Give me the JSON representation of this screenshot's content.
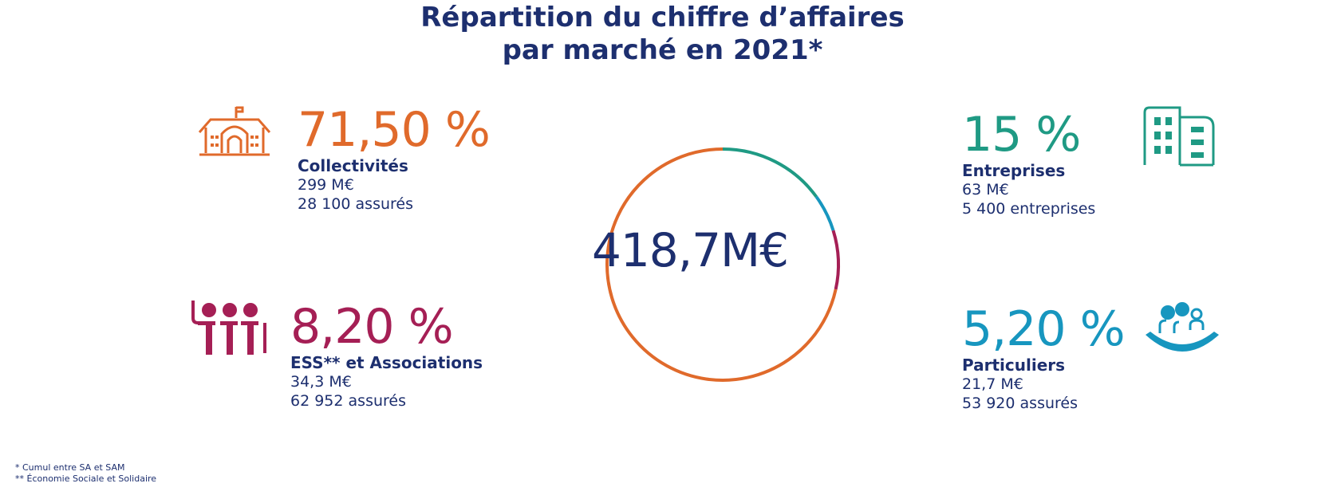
{
  "title": {
    "line1": "Répartition du chiffre d’affaires",
    "line2": "par marché en 2021*"
  },
  "total": "418,7M€",
  "markets": {
    "collectivites": {
      "pct": "71,50 %",
      "name": "Collectivités",
      "amount": "299 M€",
      "count": "28 100 assurés",
      "color": "#e06a2b",
      "icon": "town-hall-icon"
    },
    "entreprises": {
      "pct": "15 %",
      "name": "Entreprises",
      "amount": "63 M€",
      "count": "5 400 entreprises",
      "color": "#1f9a84",
      "icon": "office-building-icon"
    },
    "ess": {
      "pct": "8,20 %",
      "name": "ESS** et Associations",
      "amount": "34,3 M€",
      "count": "62 952 assurés",
      "color": "#a51f55",
      "icon": "people-group-icon"
    },
    "particuliers": {
      "pct": "5,20 %",
      "name": "Particuliers",
      "amount": "21,7 M€",
      "count": "53 920 assurés",
      "color": "#1796bf",
      "icon": "family-icon"
    }
  },
  "footnotes": {
    "note1": "* Cumul entre SA et SAM",
    "note2": "** Économie Sociale et Solidaire"
  },
  "chart_data": {
    "type": "pie",
    "title": "Répartition du chiffre d’affaires par marché en 2021*",
    "center_label": "418,7M€",
    "categories": [
      "Collectivités",
      "Entreprises",
      "ESS** et Associations",
      "Particuliers"
    ],
    "values": [
      71.5,
      15,
      8.2,
      5.2
    ],
    "amounts": [
      "299 M€",
      "63 M€",
      "34,3 M€",
      "21,7 M€"
    ],
    "colors": [
      "#e06a2b",
      "#1f9a84",
      "#a51f55",
      "#1796bf"
    ]
  }
}
